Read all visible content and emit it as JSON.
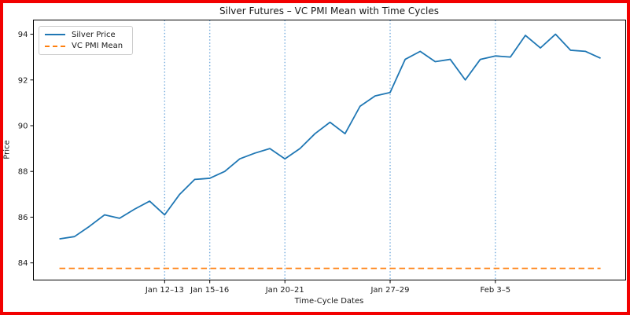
{
  "figure": {
    "border_color": "#f20000",
    "background_color": "#ffffff"
  },
  "chart_data": {
    "type": "line",
    "title": "Silver Futures – VC PMI Mean with Time Cycles",
    "xlabel": "Time-Cycle Dates",
    "ylabel": "Price",
    "grid": false,
    "legend_position": "upper left",
    "ylim": [
      83.25,
      94.62
    ],
    "xlim_index": [
      -1.73,
      37.67
    ],
    "yticks": [
      84,
      86,
      88,
      90,
      92,
      94
    ],
    "series": [
      {
        "name": "Silver Price",
        "color": "#1f77b4",
        "linestyle": "solid",
        "values": [
          85.05,
          85.15,
          85.6,
          86.1,
          85.95,
          86.35,
          86.7,
          86.1,
          87.0,
          87.65,
          87.7,
          88.0,
          88.55,
          88.8,
          89.0,
          88.55,
          89.0,
          89.65,
          90.15,
          89.65,
          90.85,
          91.3,
          91.45,
          92.9,
          93.25,
          92.8,
          92.9,
          92.0,
          92.9,
          93.05,
          93.0,
          93.95,
          93.4,
          94.0,
          93.3,
          93.25,
          92.95
        ]
      },
      {
        "name": "VC PMI Mean",
        "color": "#ff7f0e",
        "linestyle": "dashed",
        "constant_value": 83.76
      }
    ],
    "time_cycle_lines": {
      "color": "#79aede",
      "linestyle": "dotted",
      "cycles": [
        {
          "label": "Jan 12–13",
          "index": 7
        },
        {
          "label": "Jan 15–16",
          "index": 10
        },
        {
          "label": "Jan 20–21",
          "index": 15
        },
        {
          "label": "Jan 27–29",
          "index": 22
        },
        {
          "label": "Feb 3–5",
          "index": 29
        }
      ]
    }
  }
}
